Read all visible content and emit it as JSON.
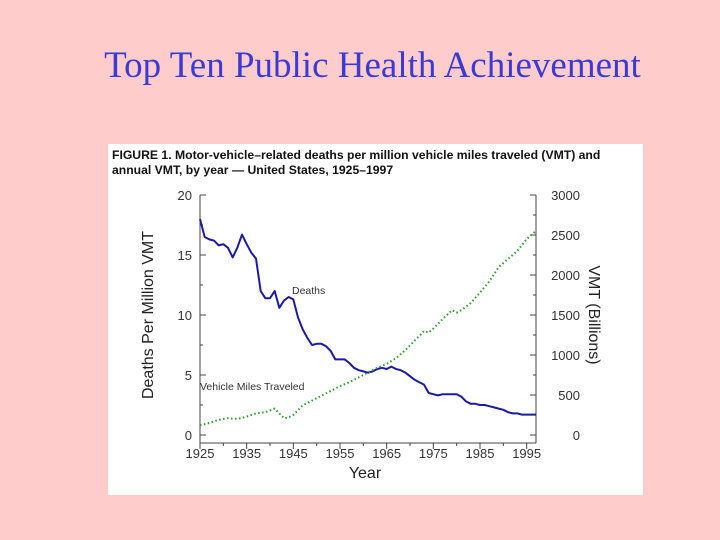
{
  "slide": {
    "title": "Top Ten Public Health Achievement"
  },
  "figure": {
    "caption_line1": "FIGURE 1. Motor-vehicle–related deaths per million vehicle miles traveled (VMT) and",
    "caption_line2": "annual VMT, by year — United States, 1925–1997"
  },
  "chart_data": {
    "type": "line",
    "xlabel": "Year",
    "ylabel_left": "Deaths Per Million VMT",
    "ylabel_right": "VMT (Billions)",
    "xlim": [
      1925,
      1997
    ],
    "ylim_left": [
      0,
      20
    ],
    "ylim_right": [
      0,
      3000
    ],
    "x_ticks": [
      1925,
      1935,
      1945,
      1955,
      1965,
      1975,
      1985,
      1995
    ],
    "y_ticks_left": [
      0,
      5,
      10,
      15,
      20
    ],
    "y_ticks_right": [
      0,
      500,
      1000,
      1500,
      2000,
      2500,
      3000
    ],
    "grid": false,
    "legend": "none",
    "series": [
      {
        "name": "Deaths",
        "axis": "left",
        "color": "#1a1aaa",
        "style": "solid",
        "x": [
          1925,
          1926,
          1927,
          1928,
          1929,
          1930,
          1931,
          1932,
          1933,
          1934,
          1935,
          1936,
          1937,
          1938,
          1939,
          1940,
          1941,
          1942,
          1943,
          1944,
          1945,
          1946,
          1947,
          1948,
          1949,
          1950,
          1951,
          1952,
          1953,
          1954,
          1955,
          1956,
          1957,
          1958,
          1959,
          1960,
          1961,
          1962,
          1963,
          1964,
          1965,
          1966,
          1967,
          1968,
          1969,
          1970,
          1971,
          1972,
          1973,
          1974,
          1975,
          1976,
          1977,
          1978,
          1979,
          1980,
          1981,
          1982,
          1983,
          1984,
          1985,
          1986,
          1987,
          1988,
          1989,
          1990,
          1991,
          1992,
          1993,
          1994,
          1995,
          1996,
          1997
        ],
        "values": [
          18.0,
          16.5,
          16.3,
          16.2,
          15.8,
          15.9,
          15.6,
          14.8,
          15.6,
          16.7,
          15.9,
          15.2,
          14.7,
          12.0,
          11.4,
          11.4,
          12.0,
          10.6,
          11.2,
          11.5,
          11.3,
          9.8,
          8.8,
          8.1,
          7.5,
          7.6,
          7.6,
          7.4,
          7.0,
          6.3,
          6.3,
          6.3,
          6.0,
          5.6,
          5.4,
          5.3,
          5.2,
          5.3,
          5.5,
          5.6,
          5.5,
          5.7,
          5.5,
          5.4,
          5.2,
          4.9,
          4.6,
          4.4,
          4.2,
          3.5,
          3.4,
          3.3,
          3.4,
          3.4,
          3.4,
          3.4,
          3.2,
          2.8,
          2.6,
          2.6,
          2.5,
          2.5,
          2.4,
          2.3,
          2.2,
          2.1,
          1.9,
          1.8,
          1.8,
          1.7,
          1.7,
          1.7,
          1.7
        ]
      },
      {
        "name": "Vehicle Miles Traveled",
        "axis": "right",
        "color": "#2a9a2a",
        "style": "dotted",
        "x": [
          1925,
          1927,
          1929,
          1931,
          1933,
          1935,
          1937,
          1939,
          1941,
          1942,
          1943,
          1944,
          1945,
          1947,
          1949,
          1951,
          1953,
          1955,
          1957,
          1959,
          1961,
          1963,
          1965,
          1967,
          1969,
          1971,
          1973,
          1974,
          1975,
          1977,
          1979,
          1980,
          1981,
          1983,
          1985,
          1987,
          1989,
          1991,
          1993,
          1995,
          1997
        ],
        "values": [
          120,
          150,
          190,
          210,
          200,
          230,
          270,
          285,
          330,
          270,
          210,
          220,
          250,
          370,
          430,
          490,
          550,
          610,
          660,
          720,
          780,
          840,
          890,
          960,
          1060,
          1180,
          1300,
          1280,
          1330,
          1450,
          1560,
          1530,
          1560,
          1650,
          1780,
          1920,
          2100,
          2200,
          2300,
          2450,
          2550
        ]
      }
    ]
  }
}
